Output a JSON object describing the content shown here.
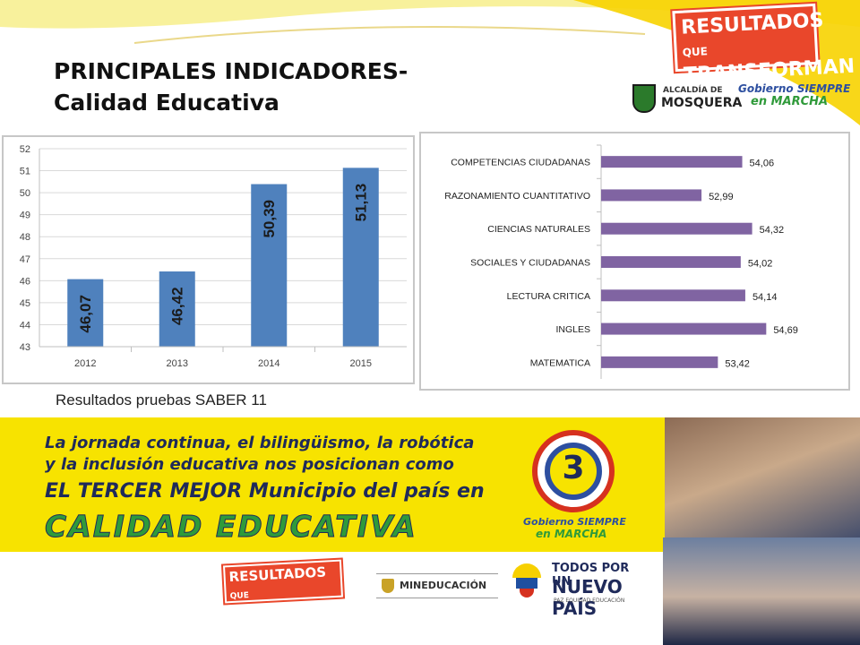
{
  "slide": {
    "title_line1": "PRINCIPALES INDICADORES-",
    "title_line2": "Calidad Educativa",
    "caption": "Resultados pruebas SABER 11"
  },
  "logos": {
    "badge_line1": "RESULTADOS",
    "badge_que": "QUE",
    "badge_line2": "TRANSFORMAN",
    "alcaldia_small": "ALCALDÍA DE",
    "alcaldia_big": "MOSQUERA",
    "gobierno_line1": "Gobierno SIEMPRE",
    "gobierno_line2": "en MARCHA",
    "mineducacion": "MINEDUCACIÓN",
    "todos_line1": "TODOS POR UN",
    "todos_line2": "NUEVO PAÍS",
    "todos_line3": "PAZ EQUIDAD EDUCACIÓN",
    "medal_number": "3"
  },
  "banner": {
    "line1": "La jornada continua, el bilingüismo, la robótica",
    "line2": "y la inclusión educativa nos posicionan como",
    "line3": "EL TERCER MEJOR Municipio del país en",
    "line4": "CALIDAD EDUCATIVA"
  },
  "colors": {
    "bar_blue": "#4f81bd",
    "bar_purple": "#8064a2",
    "banner_yellow": "#f7e300",
    "banner_text": "#1f2a5a",
    "banner_green": "#2f9a3a",
    "badge_red": "#e9472b"
  },
  "chart_data": [
    {
      "type": "bar",
      "categories": [
        "2012",
        "2013",
        "2014",
        "2015"
      ],
      "values": [
        46.07,
        46.42,
        50.39,
        51.13
      ],
      "data_labels": [
        "46,07",
        "46,42",
        "50,39",
        "51,13"
      ],
      "yticks": [
        "43",
        "44",
        "45",
        "46",
        "47",
        "48",
        "49",
        "50",
        "51",
        "52"
      ],
      "ylim": [
        43,
        52
      ],
      "grid": true,
      "title": "",
      "xlabel": "",
      "ylabel": ""
    },
    {
      "type": "bar",
      "orientation": "horizontal",
      "categories": [
        "COMPETENCIAS CIUDADANAS",
        "RAZONAMIENTO CUANTITATIVO",
        "CIENCIAS NATURALES",
        "SOCIALES Y CIUDADANAS",
        "LECTURA CRITICA",
        "INGLES",
        "MATEMATICA"
      ],
      "values": [
        54.06,
        52.99,
        54.32,
        54.02,
        54.14,
        54.69,
        53.42
      ],
      "data_labels": [
        "54,06",
        "52,99",
        "54,32",
        "54,02",
        "54,14",
        "54,69",
        "53,42"
      ],
      "grid": false,
      "title": "",
      "xlabel": "",
      "ylabel": ""
    }
  ]
}
